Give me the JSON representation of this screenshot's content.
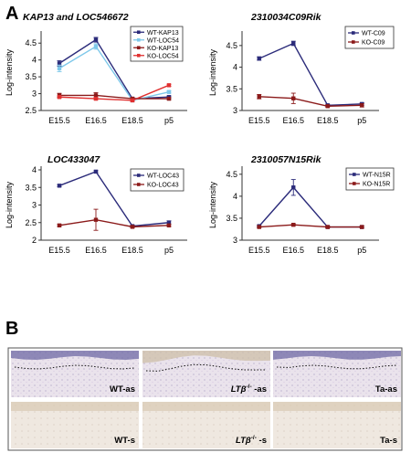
{
  "panel_a_label": "A",
  "panel_b_label": "B",
  "chart_data": [
    {
      "type": "line",
      "title": "KAP13 and LOC546672",
      "ylabel": "Log-intensity",
      "categories": [
        "E15.5",
        "E16.5",
        "E18.5",
        "p5"
      ],
      "ylim": [
        2.5,
        4.75
      ],
      "yticks": [
        2.5,
        3,
        3.5,
        4,
        4.5
      ],
      "ytick_labels": [
        "2.5",
        "3",
        "3.5",
        "4",
        "4.5"
      ],
      "series": [
        {
          "name": "WT-KAP13",
          "values": [
            3.9,
            4.6,
            2.85,
            2.9
          ],
          "err": [
            0.08,
            0.07,
            0.03,
            0.03
          ],
          "color": "#2b2b7a"
        },
        {
          "name": "WT-LOC54",
          "values": [
            3.75,
            4.4,
            2.8,
            3.05
          ],
          "err": [
            0.1,
            0.08,
            0.03,
            0.03
          ],
          "color": "#7ec8ea"
        },
        {
          "name": "KO-KAP13",
          "values": [
            2.95,
            2.95,
            2.85,
            2.85
          ],
          "err": [
            0.06,
            0.08,
            0.03,
            0.03
          ],
          "color": "#8b1a1a"
        },
        {
          "name": "KO-LOC54",
          "values": [
            2.9,
            2.85,
            2.8,
            3.25
          ],
          "err": [
            0.03,
            0.03,
            0.03,
            0.03
          ],
          "color": "#e03030"
        }
      ]
    },
    {
      "type": "line",
      "title": "2310034C09Rik",
      "ylabel": "Log-intensity",
      "categories": [
        "E15.5",
        "E16.5",
        "E18.5",
        "p5"
      ],
      "ylim": [
        3,
        4.75
      ],
      "yticks": [
        3,
        3.5,
        4,
        4.5
      ],
      "ytick_labels": [
        "3",
        "3.5",
        "4",
        "4.5"
      ],
      "series": [
        {
          "name": "WT-C09",
          "values": [
            4.2,
            4.55,
            3.12,
            3.15
          ],
          "err": [
            0.04,
            0.05,
            0.02,
            0.03
          ],
          "color": "#2b2b7a"
        },
        {
          "name": "KO-C09",
          "values": [
            3.32,
            3.28,
            3.1,
            3.12
          ],
          "err": [
            0.05,
            0.12,
            0.02,
            0.04
          ],
          "color": "#8b1a1a"
        }
      ]
    },
    {
      "type": "line",
      "title": "LOC433047",
      "ylabel": "Log-intensity",
      "categories": [
        "E15.5",
        "E16.5",
        "E18.5",
        "p5"
      ],
      "ylim": [
        2,
        4
      ],
      "yticks": [
        2,
        2.5,
        3,
        3.5,
        4
      ],
      "ytick_labels": [
        "2",
        "2.5",
        "3",
        "3.5",
        "4"
      ],
      "series": [
        {
          "name": "WT-LOC43",
          "values": [
            3.55,
            3.95,
            2.4,
            2.5
          ],
          "err": [
            0.03,
            0.03,
            0.03,
            0.05
          ],
          "color": "#2b2b7a"
        },
        {
          "name": "KO-LOC43",
          "values": [
            2.42,
            2.58,
            2.38,
            2.42
          ],
          "err": [
            0.03,
            0.3,
            0.03,
            0.03
          ],
          "color": "#8b1a1a"
        }
      ]
    },
    {
      "type": "line",
      "title": "2310057N15Rik",
      "ylabel": "Log-intensity",
      "categories": [
        "E15.5",
        "E16.5",
        "E18.5",
        "p5"
      ],
      "ylim": [
        3,
        4.6
      ],
      "yticks": [
        3,
        3.5,
        4,
        4.5
      ],
      "ytick_labels": [
        "3",
        "3.5",
        "4",
        "4.5"
      ],
      "series": [
        {
          "name": "WT-N15R",
          "values": [
            3.32,
            4.2,
            3.3,
            3.3
          ],
          "err": [
            0.02,
            0.18,
            0.02,
            0.02
          ],
          "color": "#2b2b7a"
        },
        {
          "name": "KO-N15R",
          "values": [
            3.3,
            3.35,
            3.3,
            3.3
          ],
          "err": [
            0.02,
            0.02,
            0.02,
            0.02
          ],
          "color": "#8b1a1a"
        }
      ]
    }
  ],
  "histology": {
    "panels": [
      {
        "label": "WT-as",
        "italic_prefix": "",
        "staining": "antisense"
      },
      {
        "label": " -as",
        "italic_prefix": "LTβ",
        "superscript": "-/-",
        "staining": "antisense"
      },
      {
        "label": "Ta-as",
        "italic_prefix": "",
        "staining": "antisense"
      },
      {
        "label": "WT-s",
        "italic_prefix": "",
        "staining": "sense"
      },
      {
        "label": " -s",
        "italic_prefix": "LTβ",
        "superscript": "-/-",
        "staining": "sense"
      },
      {
        "label": "Ta-s",
        "italic_prefix": "",
        "staining": "sense"
      }
    ]
  }
}
